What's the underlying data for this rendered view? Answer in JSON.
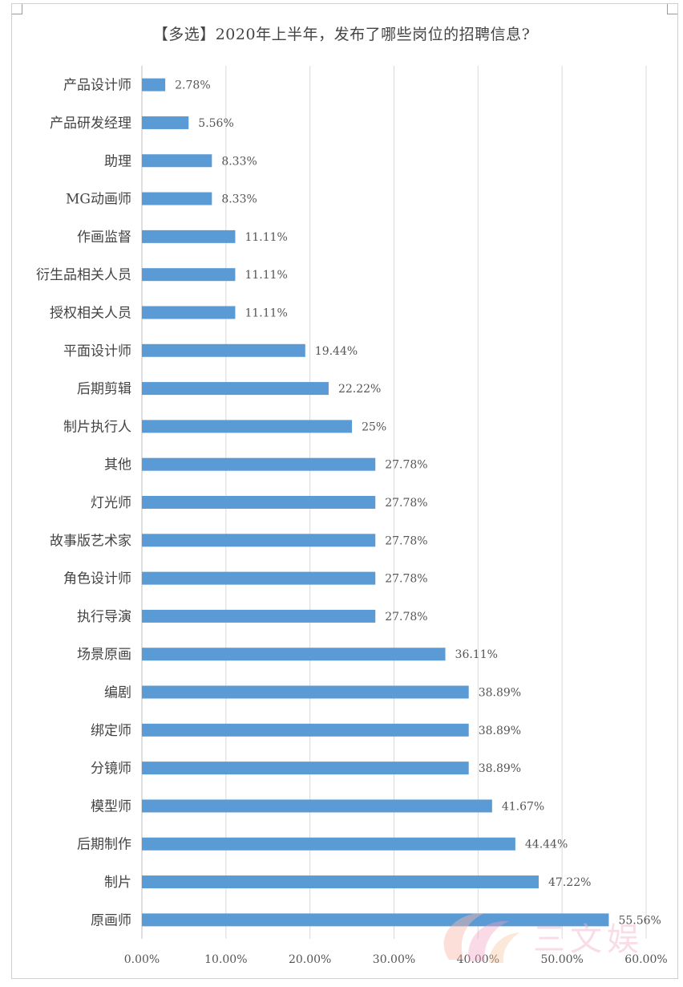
{
  "chart_data": {
    "type": "bar",
    "orientation": "horizontal",
    "title": "【多选】2020年上半年，发布了哪些岗位的招聘信息?",
    "categories": [
      "产品设计师",
      "产品研发经理",
      "助理",
      "MG动画师",
      "作画监督",
      "衍生品相关人员",
      "授权相关人员",
      "平面设计师",
      "后期剪辑",
      "制片执行人",
      "其他",
      "灯光师",
      "故事版艺术家",
      "角色设计师",
      "执行导演",
      "场景原画",
      "编剧",
      "绑定师",
      "分镜师",
      "模型师",
      "后期制作",
      "制片",
      "原画师"
    ],
    "values": [
      2.78,
      5.56,
      8.33,
      8.33,
      11.11,
      11.11,
      11.11,
      19.44,
      22.22,
      25,
      27.78,
      27.78,
      27.78,
      27.78,
      27.78,
      36.11,
      38.89,
      38.89,
      38.89,
      41.67,
      44.44,
      47.22,
      55.56
    ],
    "value_labels": [
      "2.78%",
      "5.56%",
      "8.33%",
      "8.33%",
      "11.11%",
      "11.11%",
      "11.11%",
      "19.44%",
      "22.22%",
      "25%",
      "27.78%",
      "27.78%",
      "27.78%",
      "27.78%",
      "27.78%",
      "36.11%",
      "38.89%",
      "38.89%",
      "38.89%",
      "41.67%",
      "44.44%",
      "47.22%",
      "55.56%"
    ],
    "xlim": [
      0,
      60
    ],
    "x_ticks": [
      "0.00%",
      "10.00%",
      "20.00%",
      "30.00%",
      "40.00%",
      "50.00%",
      "60.00%"
    ],
    "grid": true,
    "bar_color": "#5b9bd5"
  },
  "watermark": {
    "text": "三文娱"
  }
}
